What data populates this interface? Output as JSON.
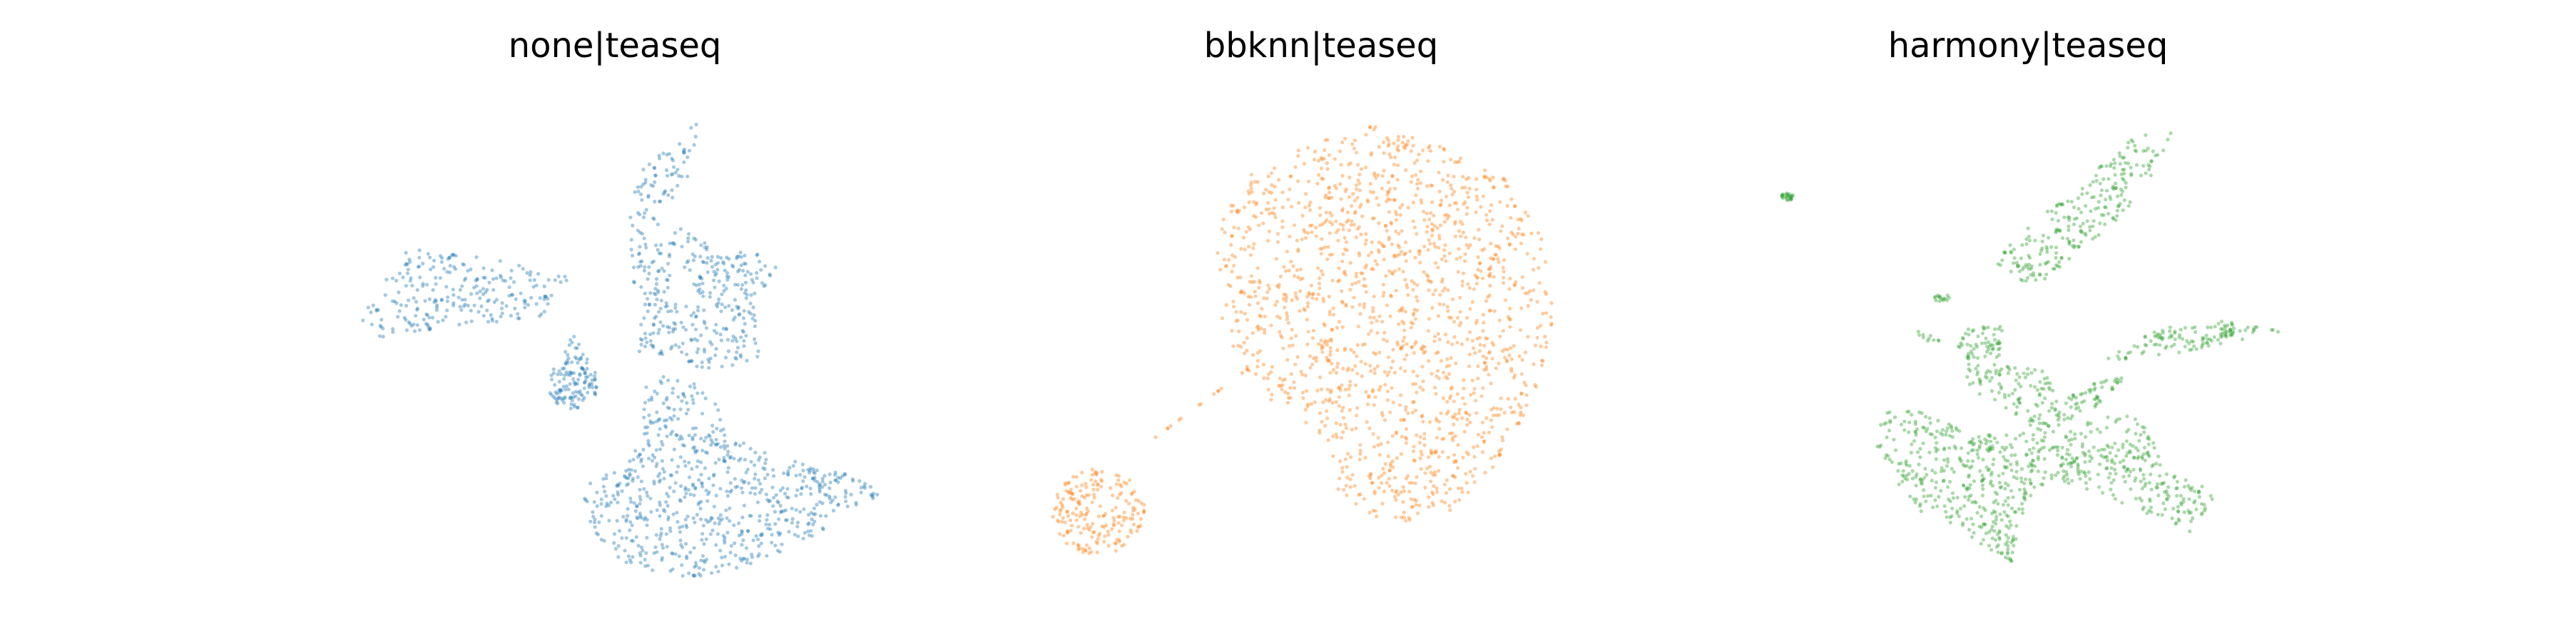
{
  "chart_data": [
    {
      "type": "scatter",
      "title": "none|teaseq",
      "color": "#1f77b4",
      "grid": false,
      "axes_visible": false,
      "xlim": [
        0,
        10
      ],
      "ylim": [
        0,
        10
      ],
      "clusters": [
        {
          "shape": "poly",
          "poly": [
            [
              0.2,
              4.9
            ],
            [
              1.2,
              6.7
            ],
            [
              3.5,
              6.3
            ],
            [
              4.2,
              6.0
            ],
            [
              3.6,
              5.1
            ],
            [
              2.2,
              5.0
            ],
            [
              0.6,
              4.7
            ],
            [
              0.2,
              4.9
            ]
          ],
          "n": 240
        },
        {
          "shape": "poly",
          "poly": [
            [
              6.3,
              9.4
            ],
            [
              6.5,
              9.4
            ],
            [
              6.3,
              8.1
            ],
            [
              5.6,
              7.3
            ],
            [
              5.3,
              7.9
            ],
            [
              5.5,
              8.5
            ],
            [
              6.0,
              8.9
            ],
            [
              6.3,
              9.4
            ]
          ],
          "n": 60
        },
        {
          "shape": "poly",
          "poly": [
            [
              5.2,
              7.6
            ],
            [
              6.3,
              7.1
            ],
            [
              7.2,
              6.2
            ],
            [
              7.5,
              5.6
            ],
            [
              7.6,
              4.3
            ],
            [
              7.0,
              4.0
            ],
            [
              6.2,
              4.1
            ],
            [
              5.4,
              4.4
            ],
            [
              5.3,
              5.5
            ],
            [
              5.2,
              7.6
            ]
          ],
          "n": 300
        },
        {
          "shape": "poly",
          "poly": [
            [
              6.8,
              6.5
            ],
            [
              7.5,
              6.7
            ],
            [
              7.9,
              6.3
            ],
            [
              7.8,
              5.9
            ],
            [
              7.4,
              5.6
            ],
            [
              7.0,
              6.0
            ],
            [
              6.8,
              6.5
            ]
          ],
          "n": 40
        },
        {
          "shape": "ellipse",
          "cx": 4.2,
          "cy": 3.7,
          "rx": 0.45,
          "ry": 0.55,
          "n": 110
        },
        {
          "shape": "poly",
          "poly": [
            [
              4.2,
              4.8
            ],
            [
              4.5,
              4.2
            ],
            [
              4.3,
              4.0
            ],
            [
              4.0,
              4.4
            ],
            [
              4.2,
              4.8
            ]
          ],
          "n": 20
        },
        {
          "shape": "poly",
          "poly": [
            [
              5.4,
              3.8
            ],
            [
              6.2,
              3.9
            ],
            [
              6.8,
              3.4
            ],
            [
              7.0,
              2.6
            ],
            [
              7.8,
              2.2
            ],
            [
              8.7,
              1.8
            ],
            [
              9.2,
              1.1
            ],
            [
              8.8,
              0.5
            ],
            [
              7.6,
              -0.2
            ],
            [
              6.3,
              -0.6
            ],
            [
              5.0,
              -0.2
            ],
            [
              4.4,
              0.8
            ],
            [
              4.4,
              1.5
            ],
            [
              5.2,
              2.0
            ],
            [
              5.5,
              2.8
            ],
            [
              5.4,
              3.8
            ]
          ],
          "n": 650
        },
        {
          "shape": "poly",
          "poly": [
            [
              8.4,
              1.9
            ],
            [
              9.4,
              1.7
            ],
            [
              9.8,
              1.3
            ],
            [
              9.3,
              0.9
            ],
            [
              8.7,
              1.3
            ],
            [
              8.4,
              1.9
            ]
          ],
          "n": 50
        }
      ]
    },
    {
      "type": "scatter",
      "title": "bbknn|teaseq",
      "color": "#ff7f0e",
      "grid": false,
      "axes_visible": false,
      "xlim": [
        0,
        10
      ],
      "ylim": [
        0,
        10
      ],
      "clusters": [
        {
          "shape": "poly",
          "poly": [
            [
              3.7,
              8.3
            ],
            [
              4.8,
              9.0
            ],
            [
              5.9,
              9.4
            ],
            [
              7.0,
              9.0
            ],
            [
              8.3,
              8.2
            ],
            [
              9.0,
              6.9
            ],
            [
              9.2,
              5.2
            ],
            [
              8.9,
              3.6
            ],
            [
              8.2,
              2.0
            ],
            [
              7.3,
              0.9
            ],
            [
              6.2,
              0.6
            ],
            [
              5.2,
              1.3
            ],
            [
              4.8,
              2.6
            ],
            [
              3.9,
              3.5
            ],
            [
              3.2,
              4.8
            ],
            [
              3.0,
              6.3
            ],
            [
              3.2,
              7.4
            ],
            [
              3.7,
              8.3
            ]
          ],
          "n": 1500
        },
        {
          "shape": "ellipse",
          "cx": 0.9,
          "cy": 0.9,
          "rx": 0.85,
          "ry": 0.95,
          "n": 200
        },
        {
          "shape": "poly",
          "poly": [
            [
              1.8,
              2.4
            ],
            [
              3.7,
              4.1
            ],
            [
              3.6,
              4.0
            ],
            [
              1.7,
              2.3
            ],
            [
              1.8,
              2.4
            ]
          ],
          "n": 15
        }
      ]
    },
    {
      "type": "scatter",
      "title": "harmony|teaseq",
      "color": "#2ca02c",
      "grid": false,
      "axes_visible": false,
      "xlim": [
        0,
        10
      ],
      "ylim": [
        0,
        10
      ],
      "clusters": [
        {
          "shape": "ellipse",
          "cx": 0.6,
          "cy": 7.8,
          "rx": 0.12,
          "ry": 0.08,
          "n": 25
        },
        {
          "shape": "poly",
          "poly": [
            [
              6.9,
              9.2
            ],
            [
              7.6,
              9.2
            ],
            [
              7.3,
              8.4
            ],
            [
              6.8,
              7.5
            ],
            [
              5.8,
              6.5
            ],
            [
              5.0,
              5.7
            ],
            [
              4.3,
              6.4
            ],
            [
              4.9,
              7.1
            ],
            [
              5.9,
              8.0
            ],
            [
              6.9,
              9.2
            ]
          ],
          "n": 240
        },
        {
          "shape": "poly",
          "poly": [
            [
              3.8,
              4.9
            ],
            [
              4.5,
              5.0
            ],
            [
              4.5,
              4.3
            ],
            [
              3.9,
              4.2
            ],
            [
              3.7,
              4.5
            ],
            [
              3.8,
              4.9
            ]
          ],
          "n": 60
        },
        {
          "shape": "poly",
          "poly": [
            [
              3.0,
              5.0
            ],
            [
              3.4,
              4.7
            ],
            [
              3.3,
              4.5
            ],
            [
              2.9,
              4.8
            ],
            [
              3.0,
              5.0
            ]
          ],
          "n": 10
        },
        {
          "shape": "poly",
          "poly": [
            [
              6.3,
              4.2
            ],
            [
              7.3,
              4.9
            ],
            [
              8.3,
              5.1
            ],
            [
              9.8,
              4.9
            ],
            [
              8.6,
              4.6
            ],
            [
              7.4,
              4.3
            ],
            [
              6.3,
              4.2
            ]
          ],
          "n": 110
        },
        {
          "shape": "poly",
          "poly": [
            [
              2.3,
              3.1
            ],
            [
              3.2,
              3.1
            ],
            [
              4.0,
              2.6
            ],
            [
              5.6,
              2.7
            ],
            [
              6.4,
              3.1
            ],
            [
              7.2,
              2.9
            ],
            [
              7.4,
              1.9
            ],
            [
              8.4,
              1.3
            ],
            [
              8.0,
              0.4
            ],
            [
              7.0,
              0.9
            ],
            [
              6.3,
              1.3
            ],
            [
              5.4,
              1.6
            ],
            [
              4.9,
              1.0
            ],
            [
              4.7,
              -0.2
            ],
            [
              3.9,
              0.3
            ],
            [
              3.1,
              0.8
            ],
            [
              2.6,
              1.5
            ],
            [
              2.2,
              2.4
            ],
            [
              2.3,
              3.1
            ]
          ],
          "n": 700
        },
        {
          "shape": "poly",
          "poly": [
            [
              4.9,
              2.9
            ],
            [
              6.3,
              3.8
            ],
            [
              6.9,
              4.0
            ],
            [
              6.2,
              3.2
            ],
            [
              5.2,
              2.6
            ],
            [
              4.9,
              2.9
            ]
          ],
          "n": 80
        },
        {
          "shape": "poly",
          "poly": [
            [
              3.8,
              4.2
            ],
            [
              5.3,
              4.0
            ],
            [
              5.6,
              3.3
            ],
            [
              4.8,
              2.9
            ],
            [
              3.9,
              3.5
            ],
            [
              3.8,
              4.2
            ]
          ],
          "n": 90
        },
        {
          "shape": "ellipse",
          "cx": 3.4,
          "cy": 5.6,
          "rx": 0.15,
          "ry": 0.1,
          "n": 15
        },
        {
          "shape": "ellipse",
          "cx": 8.6,
          "cy": 4.8,
          "rx": 0.12,
          "ry": 0.08,
          "n": 15
        }
      ]
    }
  ]
}
